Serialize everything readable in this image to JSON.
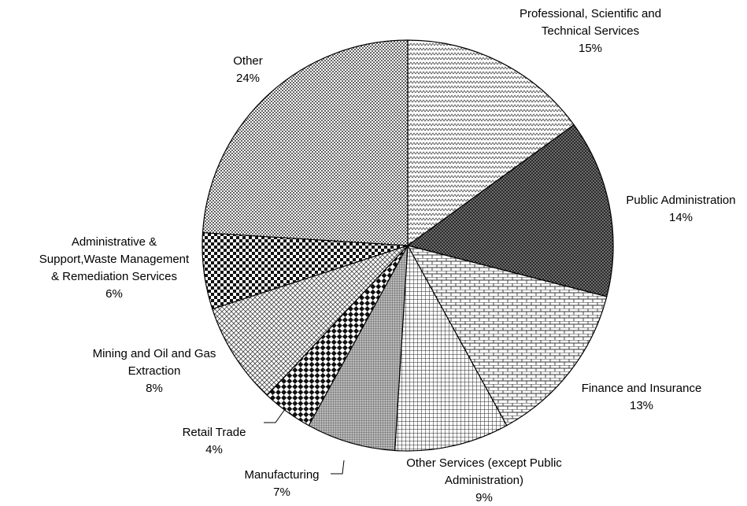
{
  "chart_data": {
    "type": "pie",
    "categories": [
      "Professional, Scientific and Technical Services",
      "Public Administration",
      "Finance and Insurance",
      "Other Services (except Public Administration)",
      "Manufacturing",
      "Retail Trade",
      "Mining and Oil and Gas Extraction",
      "Administrative & Support,Waste Management & Remediation Services",
      "Other"
    ],
    "values": [
      15,
      14,
      13,
      9,
      7,
      4,
      8,
      6,
      24
    ],
    "value_labels": [
      "15%",
      "14%",
      "13%",
      "9%",
      "7%",
      "4%",
      "8%",
      "6%",
      "24%"
    ]
  }
}
